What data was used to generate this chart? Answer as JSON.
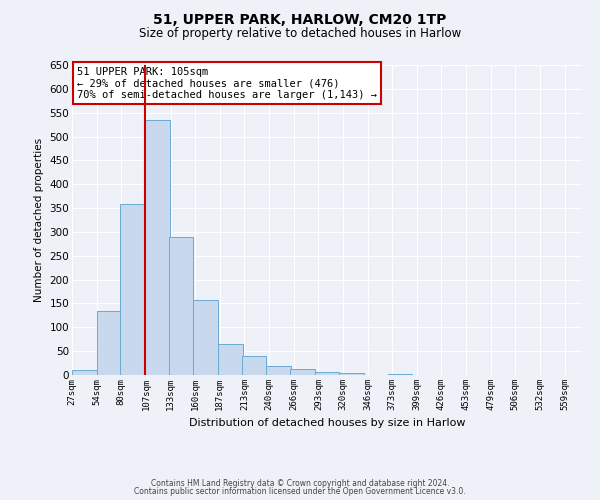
{
  "title": "51, UPPER PARK, HARLOW, CM20 1TP",
  "subtitle": "Size of property relative to detached houses in Harlow",
  "xlabel": "Distribution of detached houses by size in Harlow",
  "ylabel": "Number of detached properties",
  "bar_values": [
    10,
    135,
    358,
    535,
    290,
    157,
    65,
    40,
    18,
    12,
    7,
    5,
    0,
    2,
    0,
    0,
    0,
    0,
    0,
    0
  ],
  "bin_starts": [
    27,
    54,
    80,
    107,
    133,
    160,
    187,
    213,
    240,
    266,
    293,
    320,
    346,
    373,
    399,
    426,
    453,
    479,
    506,
    532
  ],
  "bin_width": 27,
  "all_tick_labels": [
    "27sqm",
    "54sqm",
    "80sqm",
    "107sqm",
    "133sqm",
    "160sqm",
    "187sqm",
    "213sqm",
    "240sqm",
    "266sqm",
    "293sqm",
    "320sqm",
    "346sqm",
    "373sqm",
    "399sqm",
    "426sqm",
    "453sqm",
    "479sqm",
    "506sqm",
    "532sqm",
    "559sqm"
  ],
  "bar_color": "#c8d9ee",
  "bar_edge_color": "#6aaad4",
  "vline_x": 107,
  "vline_color": "#cc0000",
  "annotation_line1": "51 UPPER PARK: 105sqm",
  "annotation_line2": "← 29% of detached houses are smaller (476)",
  "annotation_line3": "70% of semi-detached houses are larger (1,143) →",
  "annotation_box_edgecolor": "#cc0000",
  "annotation_box_facecolor": "white",
  "ylim": [
    0,
    650
  ],
  "yticks": [
    0,
    50,
    100,
    150,
    200,
    250,
    300,
    350,
    400,
    450,
    500,
    550,
    600,
    650
  ],
  "footer_line1": "Contains HM Land Registry data © Crown copyright and database right 2024.",
  "footer_line2": "Contains public sector information licensed under the Open Government Licence v3.0.",
  "bg_color": "#eef2f8",
  "plot_bg_color": "#eef2f8",
  "title_fontsize": 10,
  "subtitle_fontsize": 8.5,
  "xlabel_fontsize": 8,
  "ylabel_fontsize": 7.5,
  "xtick_fontsize": 6.5,
  "ytick_fontsize": 7.5,
  "ann_fontsize": 7.5,
  "footer_fontsize": 5.5
}
